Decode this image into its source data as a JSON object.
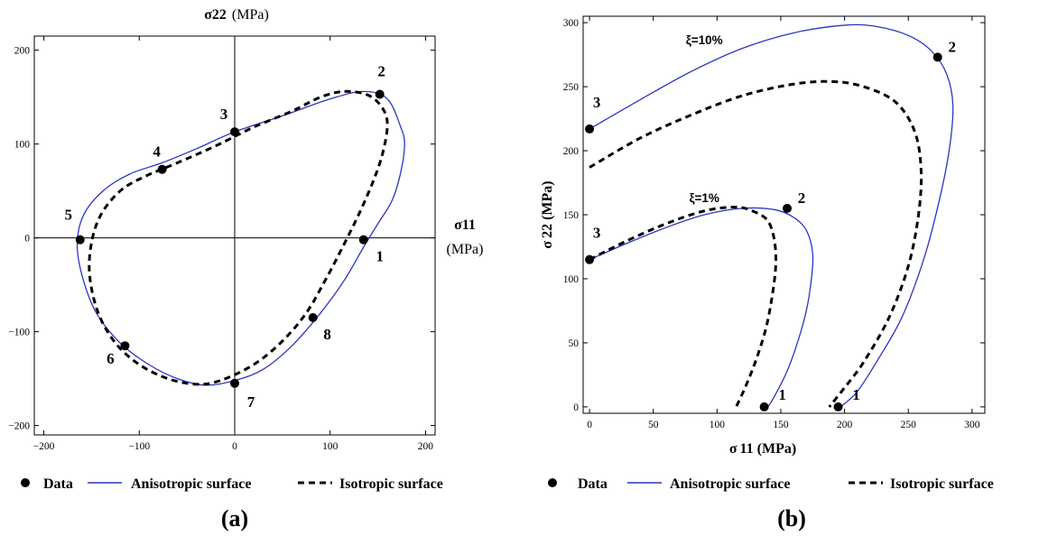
{
  "colors": {
    "anisotropic": "#2b35c4",
    "isotropic": "#000000",
    "data": "#000000"
  },
  "legend": {
    "data": "Data",
    "anisotropic": "Anisotropic surface",
    "isotropic": "Isotropic surface"
  },
  "chart_data": [
    {
      "type": "line",
      "panel_label": "(a)",
      "ylabel_bold": "σ22",
      "ylabel_unit": "(MPa)",
      "xlabel_bold": "σ11",
      "xlabel_unit": "(MPa)",
      "xlim": [
        -210,
        210
      ],
      "ylim": [
        -210,
        215
      ],
      "xticks": [
        -200,
        -100,
        0,
        100,
        200
      ],
      "yticks": [
        -200,
        -100,
        0,
        100,
        200
      ],
      "xtick_labels": [
        "−200",
        "−100",
        "0",
        "100",
        "200"
      ],
      "ytick_labels": [
        "−200",
        "−100",
        "0",
        "100",
        "200"
      ],
      "axes_through_origin": true,
      "legend_placement": "bottom",
      "points": [
        {
          "label": "1",
          "x": 135,
          "y": -2
        },
        {
          "label": "2",
          "x": 152,
          "y": 153
        },
        {
          "label": "3",
          "x": 0,
          "y": 113
        },
        {
          "label": "4",
          "x": -76,
          "y": 73
        },
        {
          "label": "5",
          "x": -162,
          "y": -2
        },
        {
          "label": "6",
          "x": -115,
          "y": -115
        },
        {
          "label": "7",
          "x": 0,
          "y": -155
        },
        {
          "label": "8",
          "x": 82,
          "y": -85
        }
      ],
      "series": [
        {
          "name": "Anisotropic surface",
          "style": "solid",
          "closed": true,
          "points": [
            [
              160,
              148
            ],
            [
              174,
              118
            ],
            [
              178,
              100
            ],
            [
              174,
              70
            ],
            [
              165,
              40
            ],
            [
              150,
              15
            ],
            [
              135,
              -10
            ],
            [
              115,
              -45
            ],
            [
              90,
              -80
            ],
            [
              60,
              -115
            ],
            [
              30,
              -140
            ],
            [
              0,
              -152
            ],
            [
              -30,
              -157
            ],
            [
              -60,
              -150
            ],
            [
              -90,
              -135
            ],
            [
              -120,
              -112
            ],
            [
              -145,
              -80
            ],
            [
              -160,
              -40
            ],
            [
              -165,
              -5
            ],
            [
              -158,
              25
            ],
            [
              -138,
              50
            ],
            [
              -110,
              68
            ],
            [
              -76,
              80
            ],
            [
              -40,
              95
            ],
            [
              0,
              113
            ],
            [
              50,
              130
            ],
            [
              100,
              148
            ],
            [
              135,
              156
            ]
          ]
        },
        {
          "name": "Isotropic surface",
          "style": "dashed",
          "closed": true,
          "points": [
            [
              115,
              156
            ],
            [
              140,
              152
            ],
            [
              155,
              138
            ],
            [
              160,
              120
            ],
            [
              155,
              90
            ],
            [
              145,
              60
            ],
            [
              130,
              25
            ],
            [
              113,
              -10
            ],
            [
              95,
              -45
            ],
            [
              75,
              -80
            ],
            [
              50,
              -110
            ],
            [
              20,
              -135
            ],
            [
              -15,
              -152
            ],
            [
              -40,
              -156
            ],
            [
              -70,
              -150
            ],
            [
              -100,
              -135
            ],
            [
              -125,
              -112
            ],
            [
              -143,
              -80
            ],
            [
              -152,
              -40
            ],
            [
              -150,
              -5
            ],
            [
              -140,
              25
            ],
            [
              -120,
              50
            ],
            [
              -95,
              65
            ],
            [
              -60,
              80
            ],
            [
              -20,
              98
            ],
            [
              20,
              118
            ],
            [
              60,
              135
            ],
            [
              90,
              150
            ]
          ]
        }
      ]
    },
    {
      "type": "line",
      "panel_label": "(b)",
      "ylabel_main": "σ",
      "ylabel_sub": "22",
      "ylabel_unit": "(MPa)",
      "xlabel_main": "σ",
      "xlabel_sub": "11",
      "xlabel_unit": "(MPa)",
      "xlim": [
        -5,
        310
      ],
      "ylim": [
        -5,
        305
      ],
      "xticks": [
        0,
        50,
        100,
        150,
        200,
        250,
        300
      ],
      "yticks": [
        0,
        50,
        100,
        150,
        200,
        250,
        300
      ],
      "legend_placement": "bottom",
      "annotations": [
        {
          "text": "ξ=10%",
          "x": 90,
          "y": 283
        },
        {
          "text": "ξ=1%",
          "x": 90,
          "y": 160
        }
      ],
      "points": [
        {
          "label": "1",
          "group": "ξ=1%",
          "x": 137,
          "y": 0
        },
        {
          "label": "2",
          "group": "ξ=1%",
          "x": 155,
          "y": 155
        },
        {
          "label": "3",
          "group": "ξ=1%",
          "x": 0,
          "y": 115
        },
        {
          "label": "1",
          "group": "ξ=10%",
          "x": 195,
          "y": 0
        },
        {
          "label": "2",
          "group": "ξ=10%",
          "x": 273,
          "y": 273
        },
        {
          "label": "3",
          "group": "ξ=10%",
          "x": 0,
          "y": 217
        }
      ],
      "series": [
        {
          "name": "Anisotropic surface",
          "group": "ξ=1%",
          "style": "solid",
          "points": [
            [
              0,
              115
            ],
            [
              30,
              128
            ],
            [
              60,
              140
            ],
            [
              90,
              150
            ],
            [
              120,
              155
            ],
            [
              145,
              154
            ],
            [
              160,
              148
            ],
            [
              170,
              138
            ],
            [
              175,
              120
            ],
            [
              174,
              100
            ],
            [
              170,
              75
            ],
            [
              163,
              50
            ],
            [
              155,
              28
            ],
            [
              146,
              10
            ],
            [
              140,
              0
            ]
          ]
        },
        {
          "name": "Isotropic surface",
          "group": "ξ=1%",
          "style": "dashed",
          "points": [
            [
              0,
              115
            ],
            [
              30,
              130
            ],
            [
              60,
              143
            ],
            [
              90,
              153
            ],
            [
              115,
              156
            ],
            [
              130,
              152
            ],
            [
              140,
              145
            ],
            [
              145,
              130
            ],
            [
              146,
              110
            ],
            [
              143,
              85
            ],
            [
              138,
              60
            ],
            [
              130,
              35
            ],
            [
              122,
              15
            ],
            [
              115,
              0
            ]
          ]
        },
        {
          "name": "Anisotropic surface",
          "group": "ξ=10%",
          "style": "solid",
          "points": [
            [
              0,
              217
            ],
            [
              40,
              240
            ],
            [
              80,
              262
            ],
            [
              120,
              280
            ],
            [
              160,
              292
            ],
            [
              200,
              298
            ],
            [
              225,
              297
            ],
            [
              250,
              290
            ],
            [
              268,
              278
            ],
            [
              280,
              260
            ],
            [
              285,
              235
            ],
            [
              282,
              200
            ],
            [
              274,
              160
            ],
            [
              262,
              115
            ],
            [
              245,
              70
            ],
            [
              225,
              35
            ],
            [
              210,
              12
            ],
            [
              197,
              0
            ]
          ]
        },
        {
          "name": "Isotropic surface",
          "group": "ξ=10%",
          "style": "dashed",
          "points": [
            [
              0,
              187
            ],
            [
              40,
              210
            ],
            [
              80,
              228
            ],
            [
              120,
              243
            ],
            [
              160,
              252
            ],
            [
              190,
              254
            ],
            [
              215,
              250
            ],
            [
              240,
              238
            ],
            [
              255,
              215
            ],
            [
              260,
              185
            ],
            [
              258,
              150
            ],
            [
              250,
              110
            ],
            [
              235,
              70
            ],
            [
              215,
              35
            ],
            [
              200,
              15
            ],
            [
              188,
              0
            ]
          ]
        }
      ]
    }
  ]
}
